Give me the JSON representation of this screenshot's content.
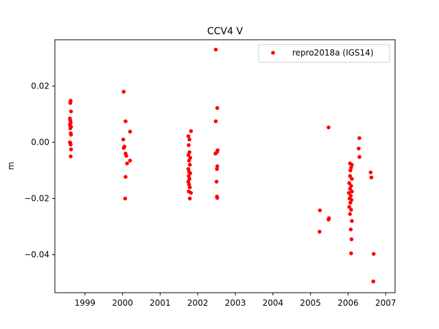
{
  "chart_data": {
    "type": "scatter",
    "title": "CCV4 V",
    "xlabel": "",
    "ylabel": "m",
    "xlim": [
      1998.2,
      2007.25
    ],
    "ylim": [
      -0.0535,
      0.0365
    ],
    "x_ticks": [
      1999,
      2000,
      2001,
      2002,
      2003,
      2004,
      2005,
      2006,
      2007
    ],
    "x_tick_labels": [
      "1999",
      "2000",
      "2001",
      "2002",
      "2003",
      "2004",
      "2005",
      "2006",
      "2007"
    ],
    "y_ticks": [
      -0.04,
      -0.02,
      0.0,
      0.02
    ],
    "y_tick_labels": [
      "−0.04",
      "−0.02",
      "0.00",
      "0.02"
    ],
    "grid": false,
    "legend_position": "top-right",
    "series": [
      {
        "name": "repro2018a (IGS14)",
        "color": "#ff0000",
        "marker": "circle",
        "points": [
          [
            1998.62,
            0.0148
          ],
          [
            1998.61,
            0.014
          ],
          [
            1998.63,
            0.011
          ],
          [
            1998.6,
            0.0085
          ],
          [
            1998.61,
            0.0078
          ],
          [
            1998.62,
            0.007
          ],
          [
            1998.6,
            0.0062
          ],
          [
            1998.63,
            0.0055
          ],
          [
            1998.61,
            0.005
          ],
          [
            1998.62,
            0.0032
          ],
          [
            1998.63,
            0.0027
          ],
          [
            1998.6,
            0.0
          ],
          [
            1998.61,
            -0.0003
          ],
          [
            1998.62,
            -0.0008
          ],
          [
            1998.63,
            -0.0025
          ],
          [
            1998.62,
            -0.005
          ],
          [
            2000.03,
            0.018
          ],
          [
            2000.08,
            0.0075
          ],
          [
            2000.2,
            0.0038
          ],
          [
            2000.02,
            0.001
          ],
          [
            2000.05,
            -0.0015
          ],
          [
            2000.03,
            -0.002
          ],
          [
            2000.08,
            -0.004
          ],
          [
            2000.1,
            -0.0048
          ],
          [
            2000.2,
            -0.0065
          ],
          [
            2000.12,
            -0.0075
          ],
          [
            2000.08,
            -0.0123
          ],
          [
            2000.07,
            -0.02
          ],
          [
            2001.75,
            0.0022
          ],
          [
            2001.82,
            0.004
          ],
          [
            2001.78,
            0.001
          ],
          [
            2001.76,
            -0.001
          ],
          [
            2001.78,
            -0.0035
          ],
          [
            2001.75,
            -0.0045
          ],
          [
            2001.8,
            -0.0055
          ],
          [
            2001.77,
            -0.0065
          ],
          [
            2001.79,
            -0.008
          ],
          [
            2001.75,
            -0.0095
          ],
          [
            2001.77,
            -0.0105
          ],
          [
            2001.8,
            -0.011
          ],
          [
            2001.76,
            -0.012
          ],
          [
            2001.78,
            -0.013
          ],
          [
            2001.75,
            -0.014
          ],
          [
            2001.77,
            -0.015
          ],
          [
            2001.79,
            -0.016
          ],
          [
            2001.76,
            -0.0175
          ],
          [
            2001.82,
            -0.018
          ],
          [
            2001.79,
            -0.02
          ],
          [
            2002.48,
            0.033
          ],
          [
            2002.52,
            0.0122
          ],
          [
            2002.48,
            0.0075
          ],
          [
            2002.53,
            -0.0028
          ],
          [
            2002.51,
            -0.0035
          ],
          [
            2002.47,
            -0.004
          ],
          [
            2002.52,
            -0.0085
          ],
          [
            2002.51,
            -0.0095
          ],
          [
            2002.5,
            -0.014
          ],
          [
            2002.51,
            -0.0193
          ],
          [
            2002.52,
            -0.0198
          ],
          [
            2005.25,
            -0.0242
          ],
          [
            2005.24,
            -0.0318
          ],
          [
            2005.48,
            0.0053
          ],
          [
            2005.49,
            -0.027
          ],
          [
            2005.48,
            -0.0275
          ],
          [
            2006.05,
            -0.0075
          ],
          [
            2006.1,
            -0.008
          ],
          [
            2006.08,
            -0.009
          ],
          [
            2006.06,
            -0.01
          ],
          [
            2006.05,
            -0.012
          ],
          [
            2006.1,
            -0.013
          ],
          [
            2006.03,
            -0.0145
          ],
          [
            2006.08,
            -0.0155
          ],
          [
            2006.05,
            -0.0165
          ],
          [
            2006.1,
            -0.0175
          ],
          [
            2006.02,
            -0.018
          ],
          [
            2006.07,
            -0.019
          ],
          [
            2006.04,
            -0.02
          ],
          [
            2006.09,
            -0.0205
          ],
          [
            2006.06,
            -0.0215
          ],
          [
            2006.03,
            -0.023
          ],
          [
            2006.08,
            -0.024
          ],
          [
            2006.05,
            -0.0255
          ],
          [
            2006.1,
            -0.028
          ],
          [
            2006.07,
            -0.031
          ],
          [
            2006.09,
            -0.0345
          ],
          [
            2006.08,
            -0.0395
          ],
          [
            2006.3,
            0.0015
          ],
          [
            2006.28,
            -0.0022
          ],
          [
            2006.3,
            -0.0052
          ],
          [
            2006.6,
            -0.0107
          ],
          [
            2006.62,
            -0.0125
          ],
          [
            2006.68,
            -0.0397
          ],
          [
            2006.67,
            -0.0495
          ]
        ]
      }
    ]
  }
}
